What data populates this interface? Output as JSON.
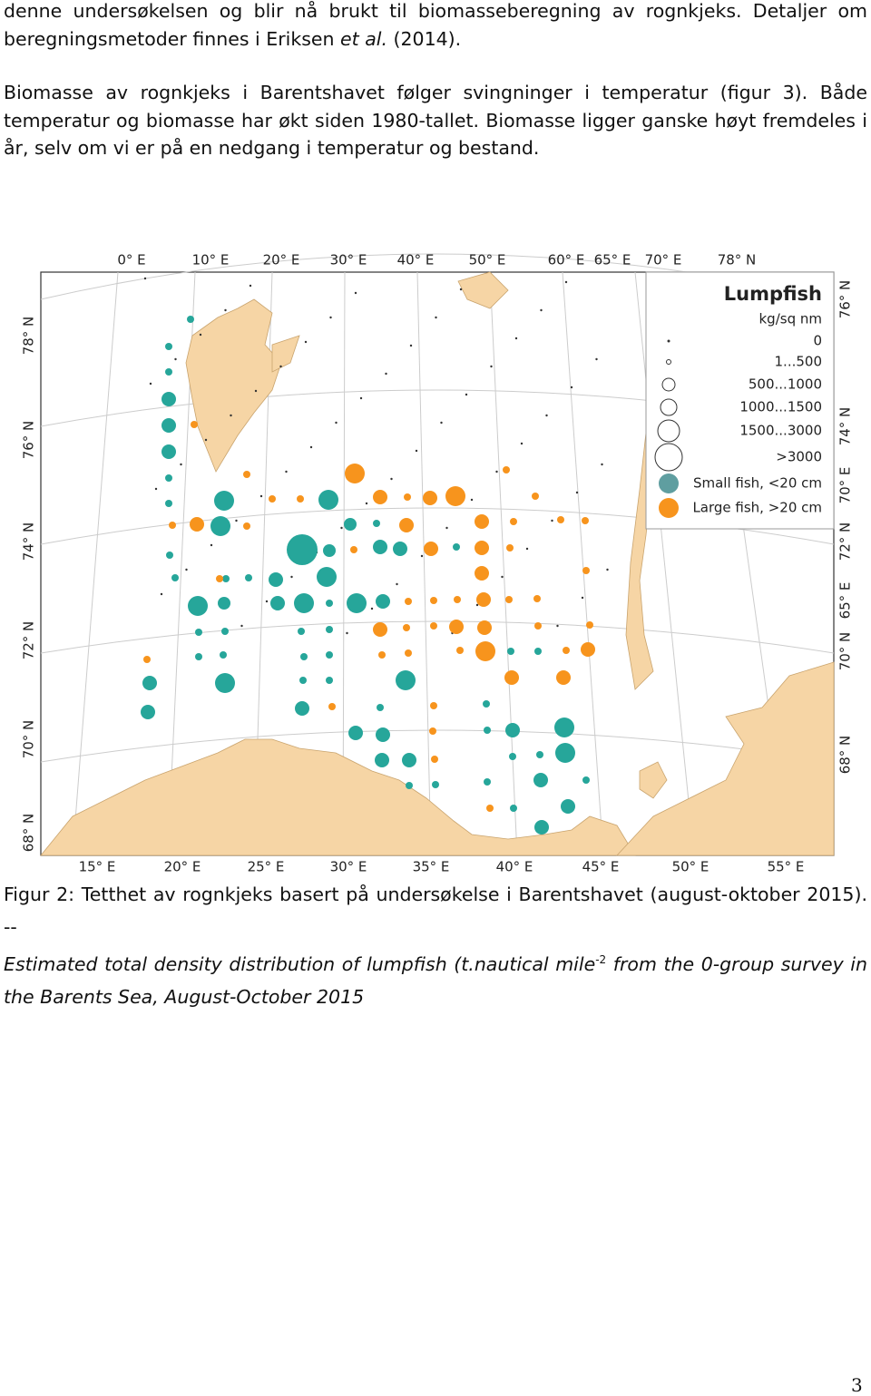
{
  "paragraphs": [
    {
      "text": "denne undersøkelsen og blir nå brukt til biomasseberegning av rognkjeks. Detaljer om beregningsmetoder finnes i Eriksen",
      "italic": "et al.",
      "text_after": "(2014)."
    },
    {
      "text": "Biomasse av rognkjeks i Barentshavet følger svingninger i temperatur (figur 3). Både temperatur og biomasse har økt siden 1980-tallet. Biomasse ligger ganske høyt fremdeles i år, selv om vi er på en nedgang i temperatur og bestand."
    }
  ],
  "figure": {
    "top_labels": [
      "0° E",
      "10° E",
      "20° E",
      "30° E",
      "40° E",
      "50° E",
      "60° E",
      "65° E",
      "70° E",
      "78° N"
    ],
    "bottom_labels": [
      "15° E",
      "20° E",
      "25° E",
      "30° E",
      "35° E",
      "40° E",
      "45° E",
      "50° E",
      "55° E"
    ],
    "left_labels": [
      "78° N",
      "76° N",
      "74° N",
      "72° N",
      "70° N",
      "68° N"
    ],
    "right_labels": [
      "76° N",
      "74° N",
      "70° E",
      "72° N",
      "65° E",
      "70° N",
      "68° N"
    ],
    "legend": {
      "title": "Lumpfish",
      "unit": "kg/sq nm",
      "classes": [
        "0",
        "1...500",
        "500...1000",
        "1000...1500",
        "1500...3000",
        ">3000"
      ],
      "series": [
        "Small fish, <20 cm",
        "Large fish, >20 cm"
      ]
    },
    "caption": {
      "text": "Figur 2: Tetthet av rognkjeks basert på undersøkelse i Barentshavet (august-oktober 2015). --",
      "italic": "Estimated total density distribution of lumpfish (t.nautical mile",
      "superscript": "-2",
      "italic_after": "from the 0-group survey in the Barents Sea,",
      "text_after": "August-October 2015"
    }
  },
  "page_number": "3"
}
